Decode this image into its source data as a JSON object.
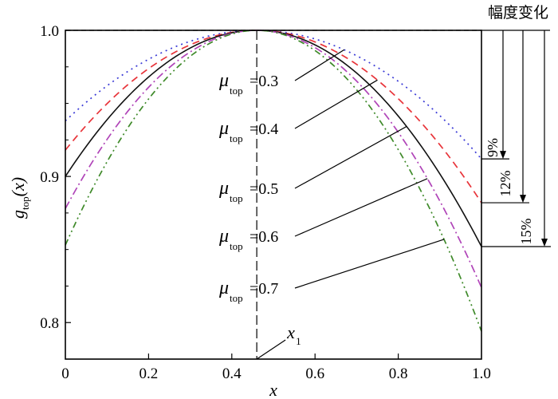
{
  "chart_data": {
    "type": "line",
    "xlabel": "x",
    "ylabel": {
      "main": "g",
      "sub": "top",
      "tail": "(x)"
    },
    "xlim": [
      0,
      1.0
    ],
    "ylim": [
      0.775,
      1.0
    ],
    "xticks": [
      "0",
      "0.2",
      "0.4",
      "0.6",
      "0.8",
      "1.0"
    ],
    "xtick_values": [
      0,
      0.2,
      0.4,
      0.6,
      0.8,
      1.0
    ],
    "yticks": [
      "0.8",
      "0.9",
      "1.0"
    ],
    "ytick_values": [
      0.8,
      0.9,
      1.0
    ],
    "peak_x": 0.46,
    "peak_label": {
      "main": "x",
      "sub": "1"
    },
    "reference_line_y": 1.0,
    "series": [
      {
        "mu_symbol": "μ",
        "mu_sub": "top",
        "mu_value": "=0.3",
        "color": "#3b3bd6",
        "dash": "2,5",
        "x": [
          0,
          0.46,
          1.0
        ],
        "y": [
          0.938,
          1.0,
          0.912
        ]
      },
      {
        "mu_symbol": "μ",
        "mu_sub": "top",
        "mu_value": "=0.4",
        "color": "#e8343a",
        "dash": "9,6",
        "x": [
          0,
          0.46,
          1.0
        ],
        "y": [
          0.918,
          1.0,
          0.882
        ]
      },
      {
        "mu_symbol": "μ",
        "mu_sub": "top",
        "mu_value": "=0.5",
        "color": "#111111",
        "dash": "",
        "x": [
          0,
          0.46,
          1.0
        ],
        "y": [
          0.9,
          1.0,
          0.852
        ]
      },
      {
        "mu_symbol": "μ",
        "mu_sub": "top",
        "mu_value": "=0.6",
        "color": "#b044b8",
        "dash": "10,4,2,4",
        "x": [
          0,
          0.46,
          1.0
        ],
        "y": [
          0.878,
          1.0,
          0.824
        ]
      },
      {
        "mu_symbol": "μ",
        "mu_sub": "top",
        "mu_value": "=0.7",
        "color": "#3f8a2a",
        "dash": "8,4,2,4,2,4",
        "x": [
          0,
          0.46,
          1.0
        ],
        "y": [
          0.853,
          1.0,
          0.794
        ]
      }
    ],
    "amplitude_title": "幅度变化",
    "amplitude_changes": [
      {
        "label": "9%",
        "to_y": 0.912
      },
      {
        "label": "12%",
        "to_y": 0.882
      },
      {
        "label": "15%",
        "to_y": 0.852
      }
    ]
  }
}
